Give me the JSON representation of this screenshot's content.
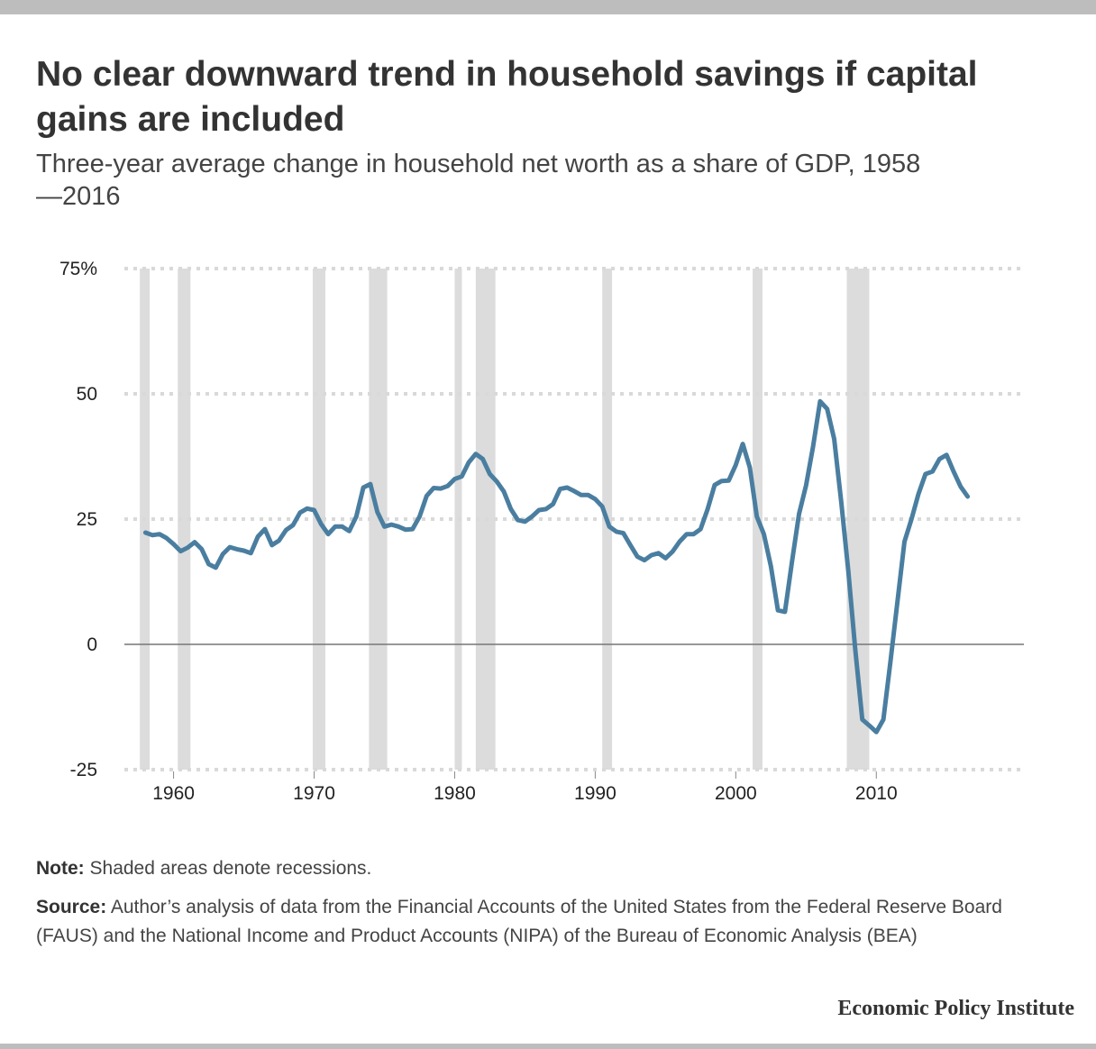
{
  "title": "No clear downward trend in household savings if capital gains are included",
  "subtitle": "Three-year average change in household net worth as a share of GDP, 1958\n—2016",
  "note_label": "Note:",
  "note_text": "Shaded areas denote recessions.",
  "source_label": "Source:",
  "source_text": "Author’s analysis of data from the Financial Accounts of the United States from the Federal Reserve Board (FAUS) and the National Income and Product Accounts (NIPA) of the Bureau of Economic Analysis (BEA)",
  "brand": "Economic Policy Institute",
  "colors": {
    "line": "#4a7ea0",
    "recession": "#dcdcdc",
    "grid": "#d9d9d9",
    "zero": "#777777"
  },
  "chart_data": {
    "type": "line",
    "title": "No clear downward trend in household savings if capital gains are included",
    "ylabel": "",
    "xlabel": "",
    "xlim": [
      1956.5,
      2020.5
    ],
    "ylim": [
      -25,
      75
    ],
    "y_ticks": [
      75,
      50,
      25,
      0,
      -25
    ],
    "y_tick_labels": [
      "75%",
      "50",
      "25",
      "0",
      "-25"
    ],
    "x_ticks": [
      1960,
      1970,
      1980,
      1990,
      2000,
      2010
    ],
    "x_tick_labels": [
      "1960",
      "1970",
      "1980",
      "1990",
      "2000",
      "2010"
    ],
    "grid": true,
    "recessions": [
      [
        1957.6,
        1958.3
      ],
      [
        1960.3,
        1961.2
      ],
      [
        1969.9,
        1970.8
      ],
      [
        1973.9,
        1975.2
      ],
      [
        1980.0,
        1980.5
      ],
      [
        1981.5,
        1982.9
      ],
      [
        1990.5,
        1991.2
      ],
      [
        2001.2,
        2001.9
      ],
      [
        2007.9,
        2009.5
      ]
    ],
    "series": [
      {
        "name": "Three-year average change in household net worth as a share of GDP",
        "x": [
          1958.0,
          1958.5,
          1959.0,
          1959.5,
          1960.0,
          1960.5,
          1961.0,
          1961.5,
          1962.0,
          1962.5,
          1963.0,
          1963.5,
          1964.0,
          1964.5,
          1965.0,
          1965.5,
          1966.0,
          1966.5,
          1967.0,
          1967.5,
          1968.0,
          1968.5,
          1969.0,
          1969.5,
          1970.0,
          1970.5,
          1971.0,
          1971.5,
          1972.0,
          1972.5,
          1973.0,
          1973.5,
          1974.0,
          1974.5,
          1975.0,
          1975.5,
          1976.0,
          1976.5,
          1977.0,
          1977.5,
          1978.0,
          1978.5,
          1979.0,
          1979.5,
          1980.0,
          1980.5,
          1981.0,
          1981.5,
          1982.0,
          1982.5,
          1983.0,
          1983.5,
          1984.0,
          1984.5,
          1985.0,
          1985.5,
          1986.0,
          1986.5,
          1987.0,
          1987.5,
          1988.0,
          1988.5,
          1989.0,
          1989.5,
          1990.0,
          1990.5,
          1991.0,
          1991.5,
          1992.0,
          1992.5,
          1993.0,
          1993.5,
          1994.0,
          1994.5,
          1995.0,
          1995.5,
          1996.0,
          1996.5,
          1997.0,
          1997.5,
          1998.0,
          1998.5,
          1999.0,
          1999.5,
          2000.0,
          2000.5,
          2001.0,
          2001.5,
          2002.0,
          2002.5,
          2003.0,
          2003.5,
          2004.0,
          2004.5,
          2005.0,
          2005.5,
          2006.0,
          2006.5,
          2007.0,
          2007.5,
          2008.0,
          2008.5,
          2009.0,
          2009.5,
          2010.0,
          2010.5,
          2011.0,
          2011.5,
          2012.0,
          2012.5,
          2013.0,
          2013.5,
          2014.0,
          2014.5,
          2015.0,
          2015.5,
          2016.0,
          2016.5
        ],
        "values": [
          22.3,
          21.8,
          22.0,
          21.2,
          20.0,
          18.6,
          19.3,
          20.4,
          19.0,
          16.0,
          15.3,
          18.0,
          19.4,
          19.0,
          18.7,
          18.2,
          21.5,
          23.0,
          19.8,
          20.7,
          22.8,
          23.8,
          26.3,
          27.1,
          26.8,
          24.0,
          22.0,
          23.5,
          23.5,
          22.6,
          25.5,
          31.3,
          32.0,
          26.4,
          23.5,
          23.9,
          23.5,
          22.9,
          23.0,
          25.5,
          29.6,
          31.2,
          31.1,
          31.6,
          33.0,
          33.5,
          36.3,
          38.0,
          37.0,
          34.0,
          32.5,
          30.5,
          27.0,
          24.8,
          24.5,
          25.5,
          26.8,
          27.0,
          28.0,
          31.0,
          31.3,
          30.6,
          29.8,
          29.8,
          29.0,
          27.5,
          23.5,
          22.5,
          22.2,
          19.8,
          17.5,
          16.8,
          17.8,
          18.2,
          17.2,
          18.5,
          20.5,
          22.0,
          22.0,
          23.0,
          27.0,
          31.8,
          32.6,
          32.7,
          35.8,
          40.0,
          35.3,
          25.5,
          22.0,
          15.6,
          6.8,
          6.5,
          16.5,
          26.0,
          31.7,
          39.5,
          48.5,
          47.0,
          41.0,
          28.5,
          14.8,
          -1.0,
          -15.0,
          -16.2,
          -17.5,
          -15.0,
          -3.5,
          8.5,
          20.5,
          25.0,
          30.0,
          34.0,
          34.5,
          37.0,
          37.8,
          34.5,
          31.5,
          29.5
        ]
      }
    ]
  }
}
